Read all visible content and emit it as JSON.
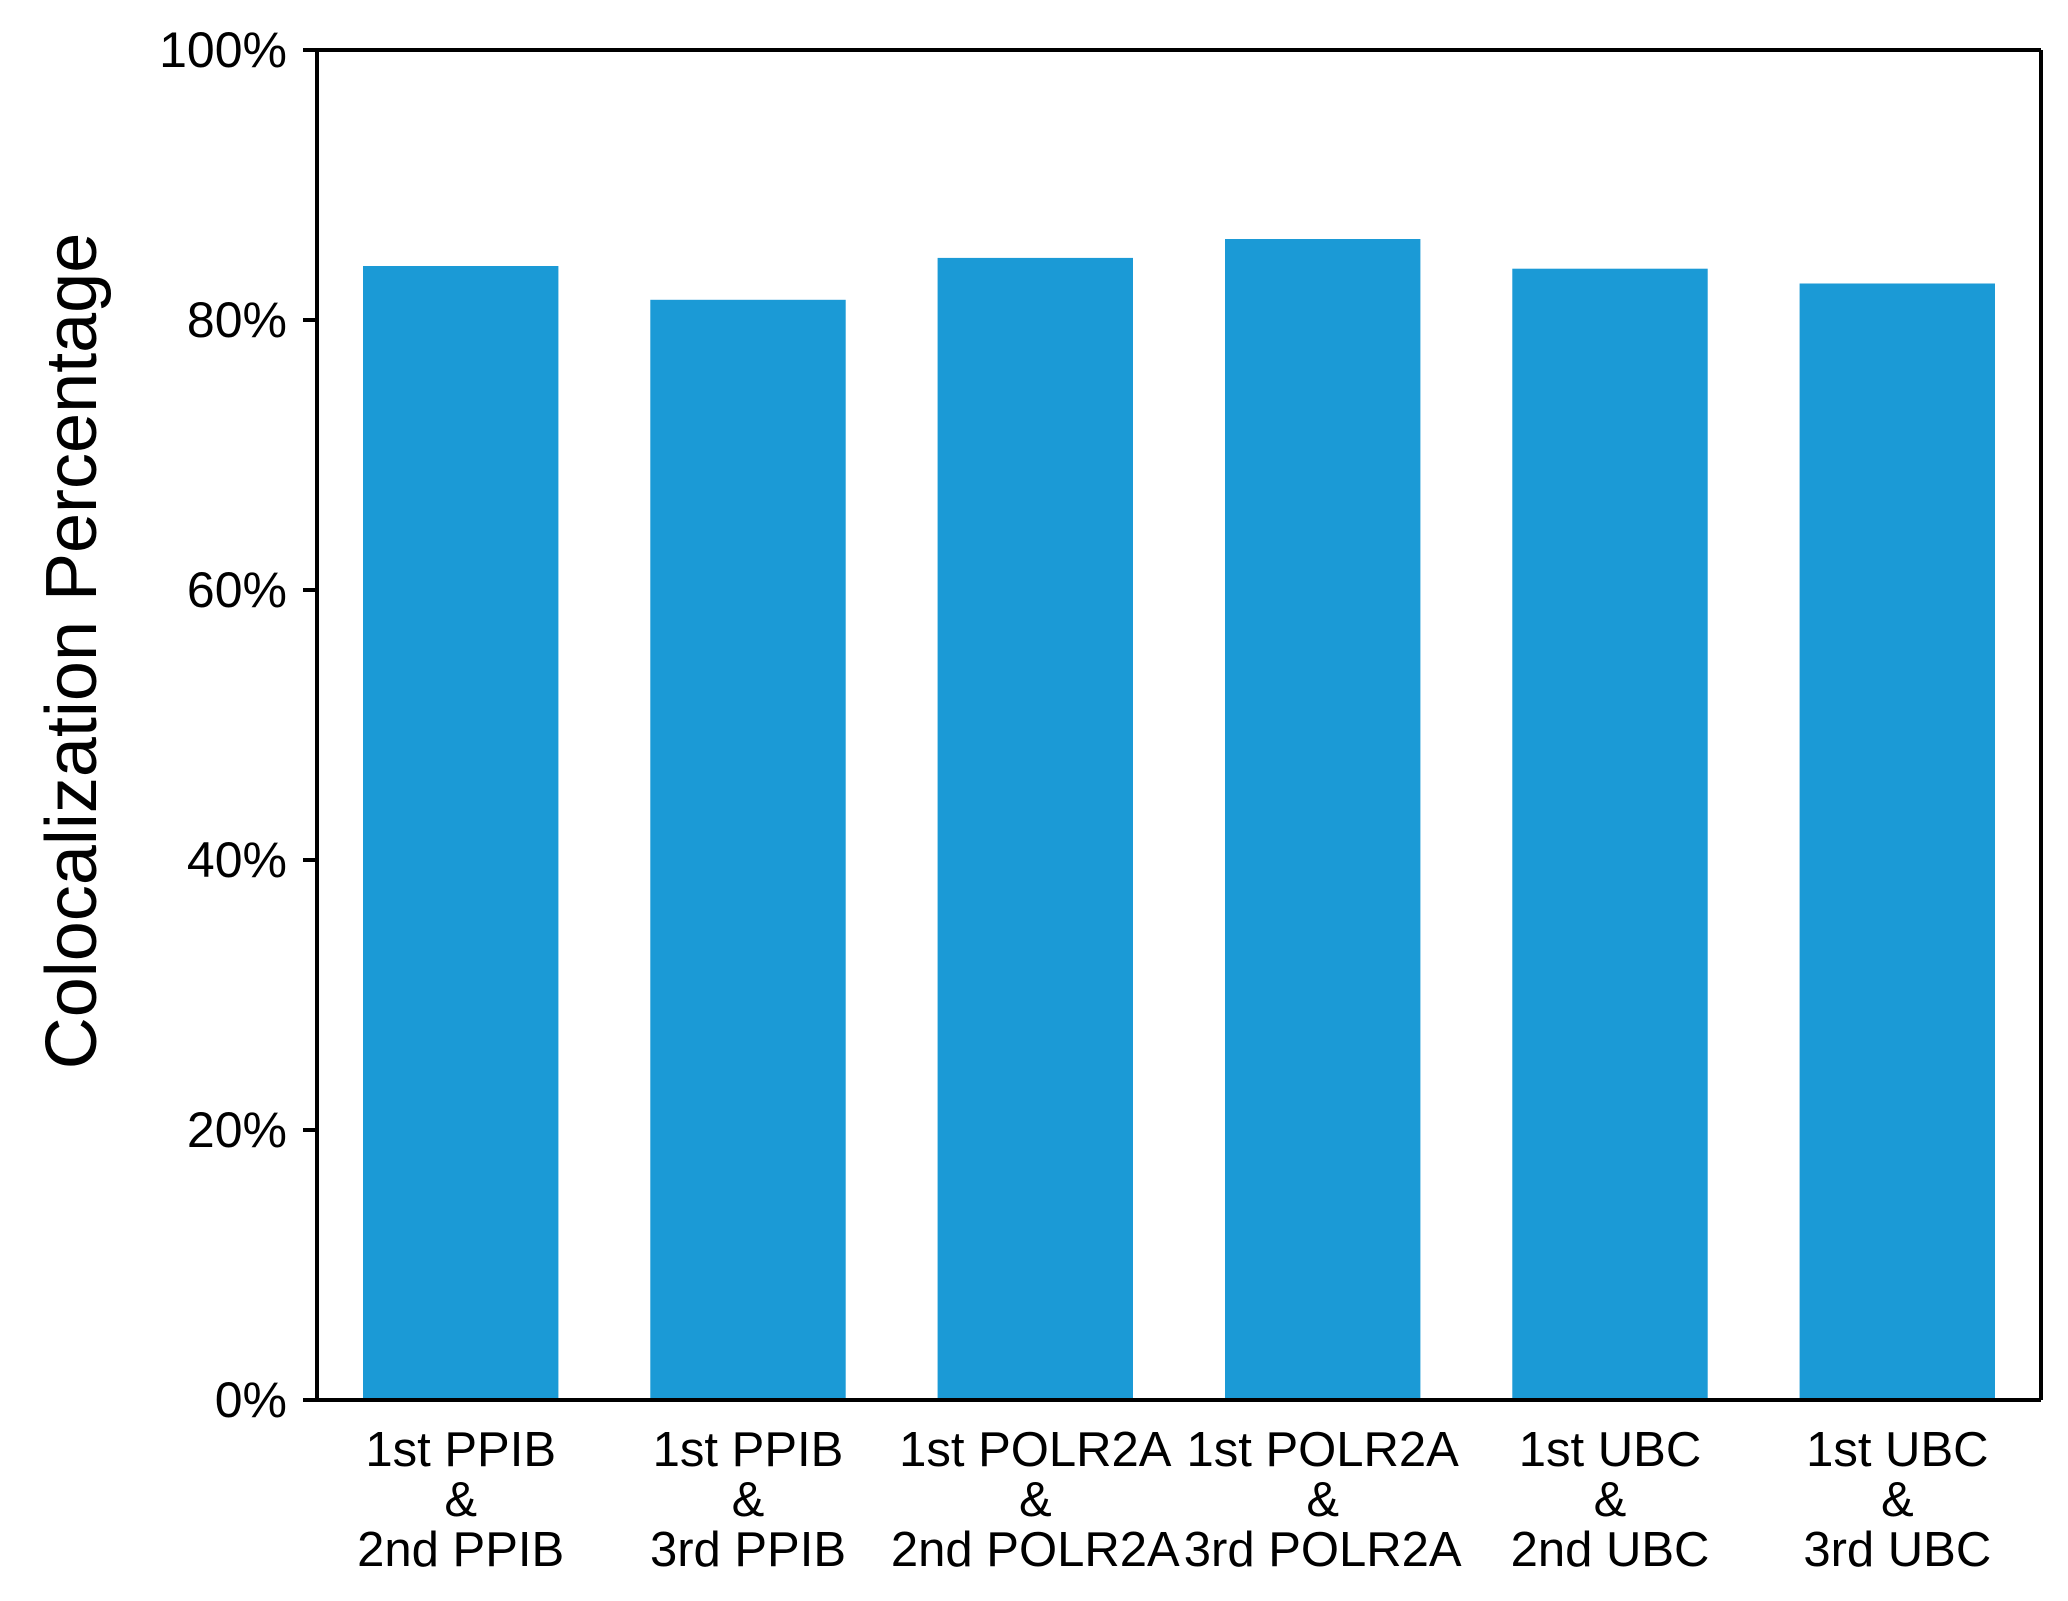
{
  "chart_data": {
    "type": "bar",
    "title": "",
    "xlabel": "",
    "ylabel": "Colocalization Percentage",
    "ylim": [
      0,
      100
    ],
    "yticks": [
      0,
      20,
      40,
      60,
      80,
      100
    ],
    "ytick_labels": [
      "0%",
      "20%",
      "40%",
      "60%",
      "80%",
      "100%"
    ],
    "categories": [
      [
        "1st PPIB",
        "&",
        "2nd PPIB"
      ],
      [
        "1st PPIB",
        "&",
        "3rd PPIB"
      ],
      [
        "1st POLR2A",
        "&",
        "2nd POLR2A"
      ],
      [
        "1st POLR2A",
        "&",
        "3rd POLR2A"
      ],
      [
        "1st UBC",
        "&",
        "2nd UBC"
      ],
      [
        "1st UBC",
        "&",
        "3rd UBC"
      ]
    ],
    "values": [
      84.0,
      81.5,
      84.6,
      86.0,
      83.8,
      82.7
    ],
    "bar_color": "#1B9AD6",
    "grid": false,
    "legend": false
  }
}
